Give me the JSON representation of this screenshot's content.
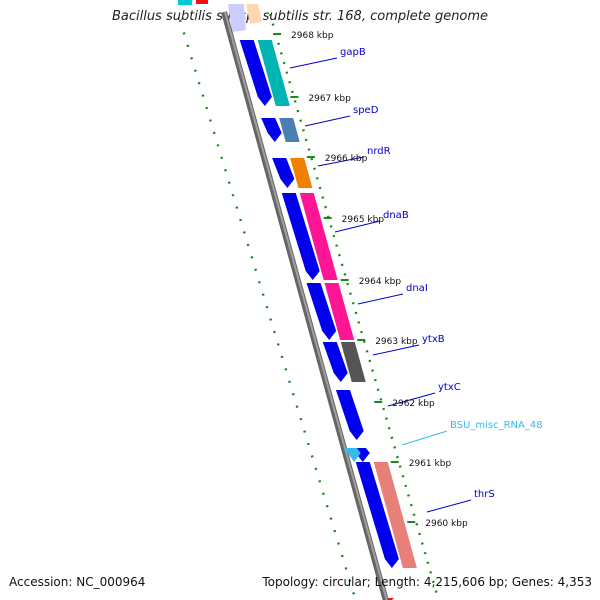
{
  "title": "Bacillus subtilis subsp. subtilis str. 168, complete genome",
  "footer": {
    "accession": "Accession: NC_000964",
    "summary": "Topology: circular; Length: 4,215,606 bp; Genes: 4,353"
  },
  "ticks": [
    {
      "label": "2968 kbp"
    },
    {
      "label": "2967 kbp"
    },
    {
      "label": "2966 kbp"
    },
    {
      "label": "2965 kbp"
    },
    {
      "label": "2964 kbp"
    },
    {
      "label": "2963 kbp"
    },
    {
      "label": "2962 kbp"
    },
    {
      "label": "2961 kbp"
    },
    {
      "label": "2960 kbp"
    }
  ],
  "genes": [
    {
      "name": "gapB",
      "color": "#00b4b4"
    },
    {
      "name": "speD",
      "color": "#4a7fb0"
    },
    {
      "name": "nrdR",
      "color": "#f08000"
    },
    {
      "name": "dnaB",
      "color": "#ff1493"
    },
    {
      "name": "dnaI",
      "color": "#ff1493"
    },
    {
      "name": "ytxB",
      "color": "#555555"
    },
    {
      "name": "ytxC",
      "color": "#0000a0"
    },
    {
      "name": "BSU_misc_RNA_48",
      "color": "#33bbee"
    },
    {
      "name": "thrS",
      "color": "#e8807a"
    }
  ],
  "colors": {
    "backbone": "#808080",
    "cds_strand": "#0000ee",
    "gc_ticks": "#1a8a1a",
    "label_line": "#0000cc",
    "rna_label": "#33bbee"
  }
}
